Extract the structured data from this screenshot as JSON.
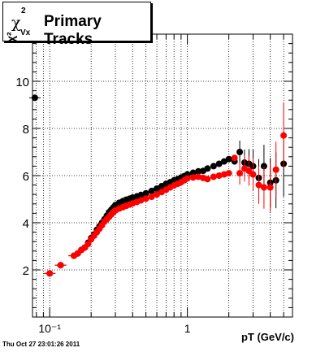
{
  "title": {
    "symbol": "χ",
    "superscript": "2",
    "subscript": "Vx",
    "text": "Primary Tracks"
  },
  "timestamp": "Thu Oct 27 23:01:26 2011",
  "chart_data": {
    "type": "scatter",
    "xlabel": "pT (GeV/c)",
    "ylabel": "χ²",
    "x_scale": "log",
    "xlim": [
      0.075,
      5.8
    ],
    "ylim": [
      0,
      12
    ],
    "y_ticks": [
      2,
      4,
      6,
      8,
      10
    ],
    "x_tick_labels": [
      "10⁻¹",
      "1"
    ],
    "x_tick_values": [
      0.1,
      1
    ],
    "grid": true,
    "colors": {
      "black": "#000000",
      "red": "#ff0000"
    },
    "series": [
      {
        "color": "#000000",
        "x": [
          0.078,
          0.1,
          0.12,
          0.15,
          0.16,
          0.17,
          0.18,
          0.19,
          0.2,
          0.21,
          0.22,
          0.23,
          0.24,
          0.25,
          0.26,
          0.27,
          0.28,
          0.29,
          0.3,
          0.32,
          0.34,
          0.36,
          0.38,
          0.4,
          0.43,
          0.46,
          0.5,
          0.55,
          0.6,
          0.65,
          0.7,
          0.75,
          0.8,
          0.85,
          0.9,
          0.95,
          1.0,
          1.1,
          1.2,
          1.3,
          1.4,
          1.55,
          1.7,
          1.85,
          2.0,
          2.2,
          2.4,
          2.6,
          2.8,
          3.0,
          3.3,
          3.6,
          4.0,
          4.4,
          5.0
        ],
        "y": [
          9.3,
          1.85,
          2.2,
          2.6,
          2.7,
          2.85,
          2.95,
          3.15,
          3.35,
          3.5,
          3.7,
          3.85,
          4.0,
          4.15,
          4.3,
          4.45,
          4.55,
          4.65,
          4.75,
          4.85,
          4.92,
          4.98,
          5.02,
          5.07,
          5.12,
          5.18,
          5.25,
          5.35,
          5.45,
          5.55,
          5.65,
          5.72,
          5.8,
          5.85,
          5.92,
          5.98,
          6.05,
          6.12,
          6.18,
          6.2,
          6.3,
          6.4,
          6.5,
          6.6,
          6.7,
          6.6,
          7.0,
          6.55,
          6.5,
          6.4,
          5.9,
          6.4,
          5.7,
          5.8,
          6.5
        ]
      },
      {
        "color": "#ff0000",
        "x": [
          0.1,
          0.12,
          0.15,
          0.16,
          0.17,
          0.18,
          0.19,
          0.2,
          0.21,
          0.22,
          0.23,
          0.24,
          0.25,
          0.26,
          0.27,
          0.28,
          0.29,
          0.3,
          0.32,
          0.34,
          0.36,
          0.38,
          0.4,
          0.43,
          0.46,
          0.5,
          0.55,
          0.6,
          0.65,
          0.7,
          0.75,
          0.8,
          0.85,
          0.9,
          0.95,
          1.0,
          1.1,
          1.2,
          1.3,
          1.4,
          1.55,
          1.7,
          1.85,
          2.0,
          2.2,
          2.4,
          2.6,
          2.8,
          3.0,
          3.3,
          3.6,
          4.0,
          4.4,
          5.0
        ],
        "y": [
          1.85,
          2.2,
          2.6,
          2.7,
          2.85,
          2.95,
          3.1,
          3.3,
          3.45,
          3.6,
          3.75,
          3.9,
          4.05,
          4.15,
          4.25,
          4.35,
          4.45,
          4.52,
          4.6,
          4.66,
          4.72,
          4.77,
          4.82,
          4.88,
          4.95,
          5.02,
          5.1,
          5.2,
          5.3,
          5.4,
          5.5,
          5.58,
          5.65,
          5.72,
          5.8,
          5.88,
          5.92,
          5.95,
          5.9,
          5.85,
          5.95,
          6.0,
          6.05,
          6.1,
          6.75,
          6.1,
          6.3,
          6.2,
          6.05,
          5.6,
          5.5,
          5.5,
          6.25,
          7.7
        ]
      }
    ]
  }
}
